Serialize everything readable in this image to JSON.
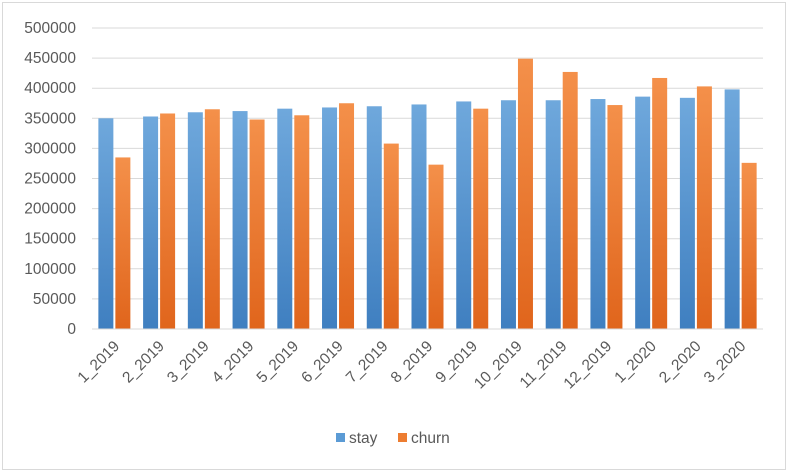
{
  "chart_data": {
    "type": "bar",
    "title": "",
    "xlabel": "",
    "ylabel": "",
    "categories": [
      "1_2019",
      "2_2019",
      "3_2019",
      "4_2019",
      "5_2019",
      "6_2019",
      "7_2019",
      "8_2019",
      "9_2019",
      "10_2019",
      "11_2019",
      "12_2019",
      "1_2020",
      "2_2020",
      "3_2020"
    ],
    "series": [
      {
        "name": "stay",
        "color": "#5b9bd5",
        "values": [
          350000,
          353000,
          360000,
          362000,
          366000,
          368000,
          370000,
          373000,
          378000,
          380000,
          380000,
          382000,
          386000,
          384000,
          398000
        ]
      },
      {
        "name": "churn",
        "color": "#ed7d31",
        "values": [
          285000,
          358000,
          365000,
          348000,
          355000,
          375000,
          308000,
          273000,
          366000,
          449000,
          427000,
          372000,
          417000,
          403000,
          276000
        ]
      }
    ],
    "ylim": [
      0,
      500000
    ],
    "yticks": [
      "0",
      "50000",
      "100000",
      "150000",
      "200000",
      "250000",
      "300000",
      "350000",
      "400000",
      "450000",
      "500000"
    ],
    "grid": true,
    "legend_position": "bottom"
  }
}
